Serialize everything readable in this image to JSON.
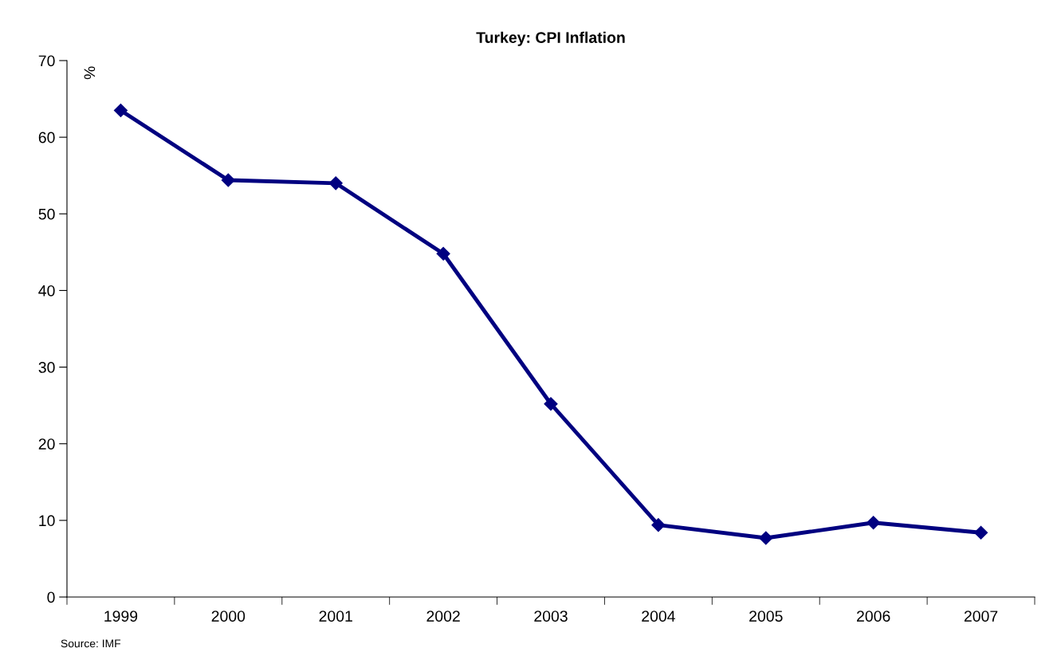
{
  "chart_data": {
    "type": "line",
    "title": "Turkey: CPI Inflation",
    "ylabel": "%",
    "categories": [
      "1999",
      "2000",
      "2001",
      "2002",
      "2003",
      "2004",
      "2005",
      "2006",
      "2007"
    ],
    "series": [
      {
        "color": "#000080",
        "values": [
          63.5,
          54.4,
          54.0,
          44.8,
          25.2,
          9.4,
          7.7,
          9.7,
          8.4
        ]
      }
    ],
    "ylim": [
      0,
      70
    ],
    "yticks": [
      0,
      10,
      20,
      30,
      40,
      50,
      60,
      70
    ],
    "marker": "diamond",
    "line_style": "solid",
    "grid": false,
    "annotations": [
      "Source: IMF"
    ]
  }
}
